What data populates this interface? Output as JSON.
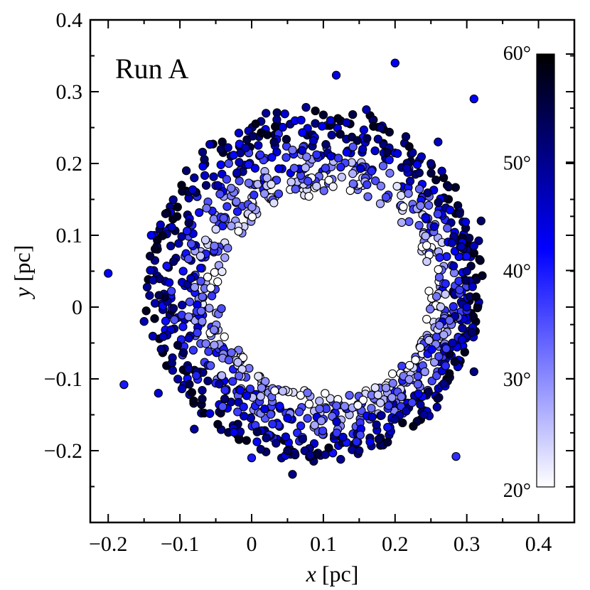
{
  "chart_data": {
    "type": "scatter",
    "title": "",
    "annotation": "Run A",
    "xlabel": {
      "var": "x",
      "unit": " [pc]"
    },
    "ylabel": {
      "var": "y",
      "unit": " [pc]"
    },
    "xlim": [
      -0.225,
      0.45
    ],
    "ylim": [
      -0.3,
      0.4
    ],
    "xticks": [
      -0.2,
      -0.1,
      0,
      0.1,
      0.2,
      0.3,
      0.4
    ],
    "xtick_labels": [
      "−0.2",
      "−0.1",
      "0",
      "0.1",
      "0.2",
      "0.3",
      "0.4"
    ],
    "yticks": [
      -0.2,
      -0.1,
      0,
      0.1,
      0.2,
      0.3,
      0.4
    ],
    "ytick_labels": [
      "−0.2",
      "−0.1",
      "0",
      "0.1",
      "0.2",
      "0.3",
      "0.4"
    ],
    "grid": false,
    "colorbar": {
      "range": [
        20,
        60
      ],
      "ticks": [
        20,
        30,
        40,
        50,
        60
      ],
      "tick_labels": [
        "20°",
        "30°",
        "40°",
        "50°",
        "60°"
      ],
      "colors": [
        "#ffffff",
        "#0000ff",
        "#000000"
      ]
    },
    "points": [
      [
        -0.2,
        0.047,
        42
      ],
      [
        -0.178,
        -0.108,
        40
      ],
      [
        0.118,
        0.323,
        44
      ],
      [
        0.2,
        0.34,
        43
      ],
      [
        0.31,
        0.29,
        42
      ],
      [
        0.285,
        -0.208,
        38
      ],
      [
        -0.103,
        -0.053,
        58
      ],
      [
        0.057,
        -0.233,
        52
      ],
      [
        0.02,
        0.27,
        50
      ],
      [
        0.11,
        0.26,
        45
      ],
      [
        0.16,
        0.275,
        48
      ],
      [
        0.25,
        0.2,
        52
      ],
      [
        0.29,
        0.13,
        55
      ],
      [
        0.3,
        0.05,
        50
      ],
      [
        0.28,
        -0.05,
        48
      ],
      [
        0.24,
        -0.15,
        50
      ],
      [
        0.15,
        -0.2,
        52
      ],
      [
        0.0,
        -0.21,
        40
      ],
      [
        -0.08,
        -0.17,
        50
      ],
      [
        -0.13,
        -0.12,
        45
      ],
      [
        -0.15,
        -0.02,
        48
      ],
      [
        -0.14,
        0.1,
        42
      ],
      [
        -0.08,
        0.18,
        50
      ],
      [
        0.3,
        0.0,
        46
      ],
      [
        0.32,
        0.12,
        54
      ],
      [
        0.31,
        -0.09,
        52
      ],
      [
        0.26,
        0.23,
        47
      ],
      [
        0.05,
        -0.2,
        55
      ],
      [
        -0.12,
        0.13,
        58
      ],
      [
        0.18,
        0.25,
        52
      ]
    ]
  }
}
